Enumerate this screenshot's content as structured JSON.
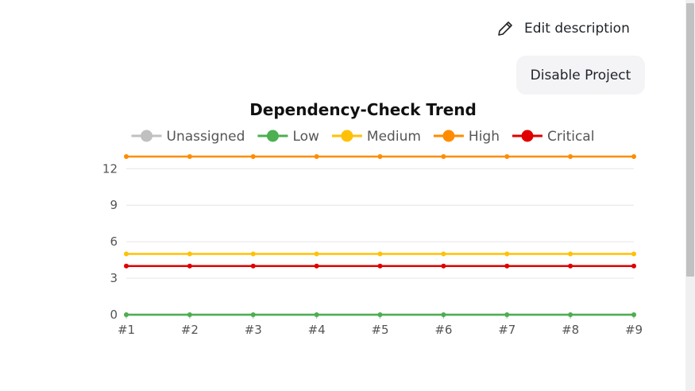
{
  "header": {
    "edit_description_label": "Edit description",
    "disable_project_label": "Disable Project"
  },
  "icons": {
    "edit": "pencil-icon"
  },
  "chart_data": {
    "type": "line",
    "title": "Dependency-Check Trend",
    "xlabel": "",
    "ylabel": "",
    "categories": [
      "#1",
      "#2",
      "#3",
      "#4",
      "#5",
      "#6",
      "#7",
      "#8",
      "#9"
    ],
    "y_ticks": [
      0,
      3,
      6,
      9,
      12
    ],
    "ylim": [
      0,
      13
    ],
    "grid": true,
    "legend_position": "top",
    "series": [
      {
        "name": "Unassigned",
        "color": "#c0c0c0",
        "values": [
          0,
          0,
          0,
          0,
          0,
          0,
          0,
          0,
          0
        ]
      },
      {
        "name": "Low",
        "color": "#4caf50",
        "values": [
          0,
          0,
          0,
          0,
          0,
          0,
          0,
          0,
          0
        ]
      },
      {
        "name": "Medium",
        "color": "#ffc107",
        "values": [
          5,
          5,
          5,
          5,
          5,
          5,
          5,
          5,
          5
        ]
      },
      {
        "name": "High",
        "color": "#ff8c00",
        "values": [
          13,
          13,
          13,
          13,
          13,
          13,
          13,
          13,
          13
        ]
      },
      {
        "name": "Critical",
        "color": "#e00000",
        "values": [
          4,
          4,
          4,
          4,
          4,
          4,
          4,
          4,
          4
        ]
      }
    ]
  }
}
